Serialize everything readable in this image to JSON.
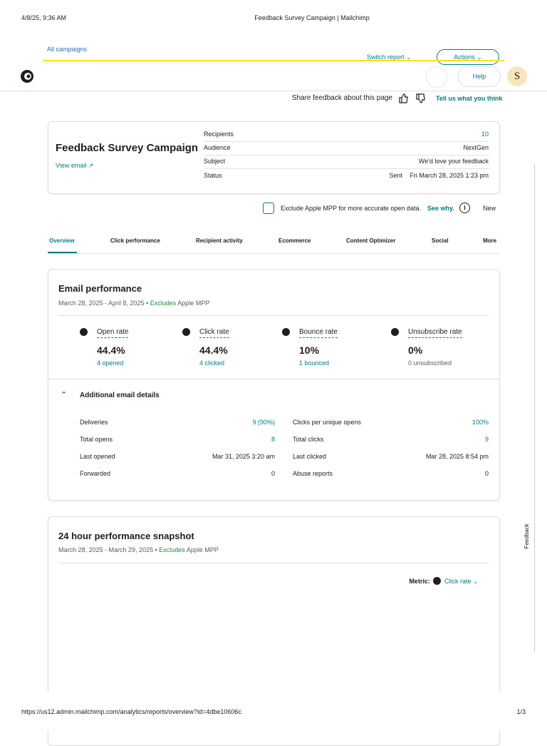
{
  "print_header": {
    "date": "4/8/25, 9:36 AM",
    "page_title": "Feedback Survey Campaign | Mailchimp"
  },
  "top_nav": {
    "breadcrumb": "All campaigns",
    "switch_report": "Switch report",
    "actions": "Actions",
    "help": "Help",
    "avatar": "S"
  },
  "feedback_bar": {
    "text": "Share feedback about this page",
    "link": "Tell us what you think"
  },
  "campaign": {
    "title": "Feedback Survey Campaign",
    "view_email": "View email",
    "details": [
      {
        "label": "Recipients",
        "value": "10"
      },
      {
        "label": "Audience",
        "value": "NextGen"
      },
      {
        "label": "Subject",
        "value": "We'd love your feedback"
      },
      {
        "label": "Status",
        "status": "Sent",
        "value": "Fri March 28, 2025 1:23 pm"
      }
    ]
  },
  "mpp": {
    "text": "Exclude Apple MPP for more accurate open data.",
    "link": "See why.",
    "badge": "New"
  },
  "tabs": [
    "Overview",
    "Click performance",
    "Recipient activity",
    "Ecommerce",
    "Content Optimizer",
    "Social",
    "More"
  ],
  "email_performance": {
    "title": "Email performance",
    "date_range": "March 28, 2025 - April 8, 2025 •",
    "excludes": "Excludes",
    "excludes_target": "Apple MPP",
    "metrics": [
      {
        "label": "Open rate",
        "value": "44.4%",
        "sub": "4 opened"
      },
      {
        "label": "Click rate",
        "value": "44.4%",
        "sub": "4 clicked"
      },
      {
        "label": "Bounce rate",
        "value": "10%",
        "sub": "1 bounced"
      },
      {
        "label": "Unsubscribe rate",
        "value": "0%",
        "sub": "0 unsubscribed"
      }
    ]
  },
  "additional_details": {
    "title": "Additional email details",
    "left": [
      [
        "Deliveries",
        "9 (90%)"
      ],
      [
        "Total opens",
        "8"
      ],
      [
        "Last opened",
        "Mar 31, 2025 3:20 am"
      ],
      [
        "Forwarded",
        "0"
      ]
    ],
    "right": [
      [
        "Clicks per unique opens",
        "100%"
      ],
      [
        "Total clicks",
        "9"
      ],
      [
        "Last clicked",
        "Mar 28, 2025 8:54 pm"
      ],
      [
        "Abuse reports",
        "0"
      ]
    ]
  },
  "snapshot": {
    "title": "24 hour performance snapshot",
    "date_range": "March 28, 2025 - March 29, 2025 •",
    "excludes": "Excludes",
    "excludes_target": "Apple MPP",
    "metric_label": "Metric:",
    "metric_value": "Click rate"
  },
  "side_tab": "Feedback",
  "footer": {
    "url": "https://us12.admin.mailchimp.com/analytics/reports/overview?id=4dbe10606c",
    "page": "1/3"
  }
}
